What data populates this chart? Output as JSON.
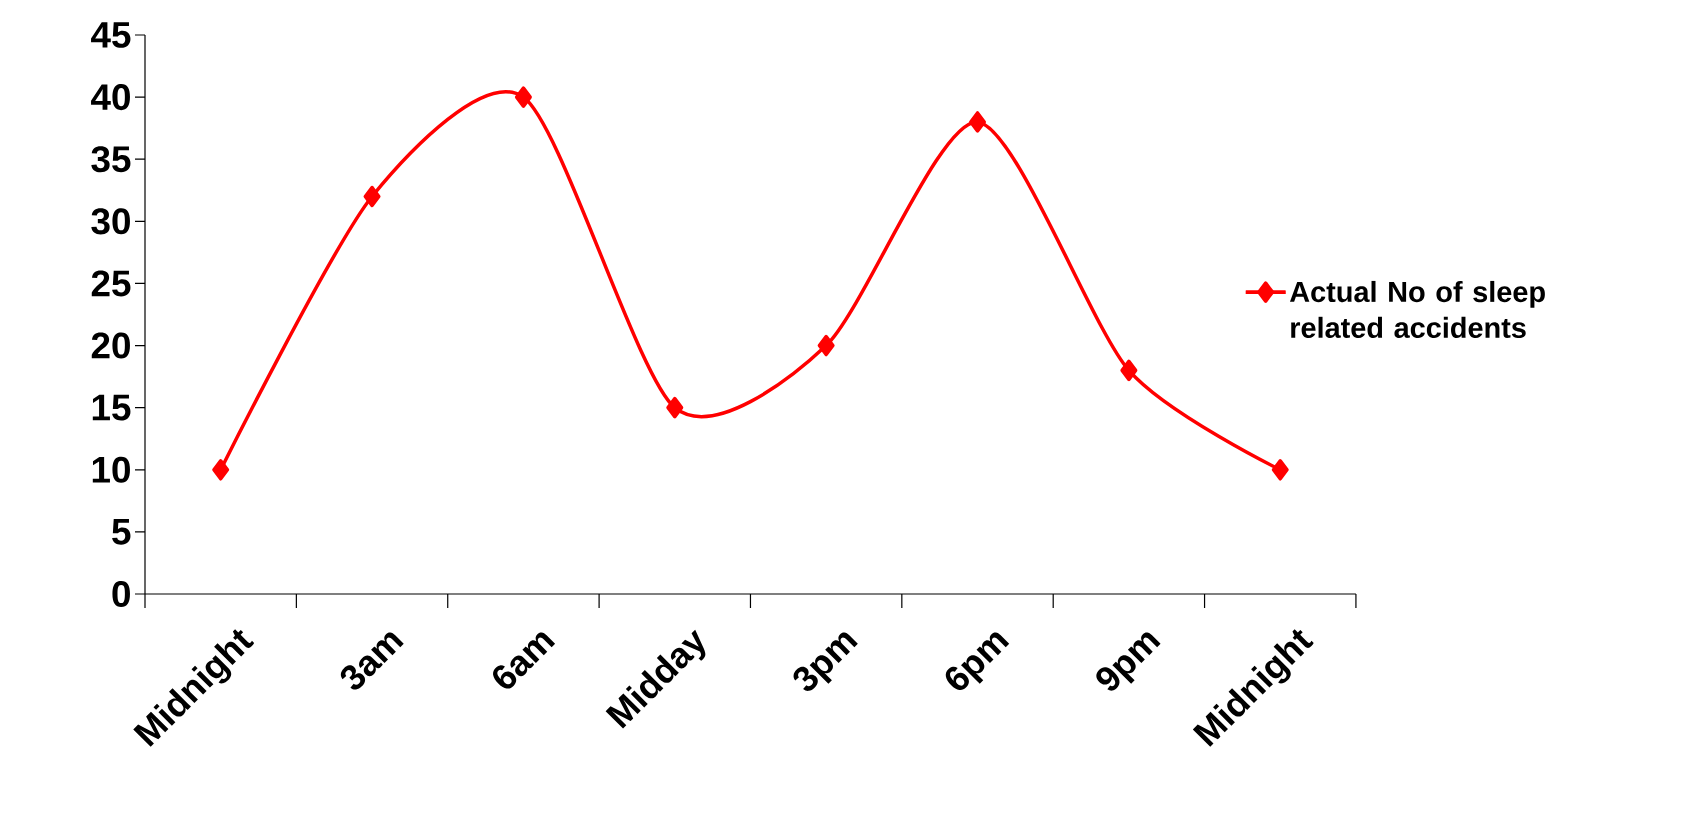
{
  "chart_data": {
    "type": "line",
    "categories": [
      "Midnight",
      "3am",
      "6am",
      "Midday",
      "3pm",
      "6pm",
      "9pm",
      "Midnight"
    ],
    "series": [
      {
        "name": "Actual No of sleep related accidents",
        "color": "#ff0000",
        "values": [
          10,
          32,
          40,
          15,
          20,
          38,
          18,
          10
        ]
      }
    ],
    "ylim": [
      0,
      45
    ],
    "yticks": [
      0,
      5,
      10,
      15,
      20,
      25,
      30,
      35,
      40,
      45
    ],
    "marker": "diamond",
    "line_style": "solid",
    "legend": "right"
  }
}
